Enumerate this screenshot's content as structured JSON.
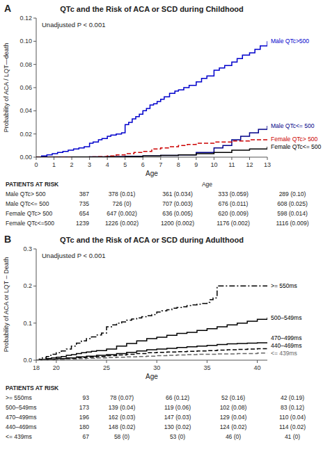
{
  "chart_data": [
    {
      "type": "step",
      "panel_label": "A",
      "title": "QTc and the Risk of ACA or SCD during Childhood",
      "x_label": "Age",
      "y_label": "Probability of ACA / LQT—death",
      "annotation": "Unadjusted P < 0.001",
      "grid": false,
      "xlim": [
        0,
        13
      ],
      "ylim": [
        0,
        0.12
      ],
      "xticks": [
        0,
        1,
        2,
        3,
        4,
        5,
        6,
        7,
        8,
        9,
        10,
        11,
        12,
        13
      ],
      "yticks": [
        {
          "value": 0,
          "label": "0.00"
        },
        0.02,
        0.04,
        0.06,
        0.08,
        {
          "value": 0.1,
          "label": "0.10"
        },
        0.12
      ],
      "series": [
        {
          "name": "Male QTc>500",
          "color": "#0000cc",
          "line_style": "solid",
          "x": [
            0,
            0.3,
            0.6,
            0.9,
            1.2,
            1.5,
            1.8,
            2.1,
            2.4,
            2.7,
            3.0,
            3.2,
            3.5,
            3.7,
            4.0,
            4.2,
            4.5,
            4.8,
            5.0,
            5.2,
            5.4,
            5.6,
            5.8,
            6.0,
            6.2,
            6.4,
            6.6,
            6.8,
            7.0,
            7.2,
            7.5,
            7.8,
            8.0,
            8.3,
            8.6,
            9.0,
            9.3,
            9.6,
            10.0,
            10.3,
            10.6,
            11.0,
            11.3,
            11.6,
            12.0,
            12.3,
            12.6,
            13.0
          ],
          "values": [
            0,
            0.001,
            0.002,
            0.003,
            0.004,
            0.005,
            0.006,
            0.007,
            0.008,
            0.009,
            0.012,
            0.013,
            0.015,
            0.016,
            0.018,
            0.019,
            0.02,
            0.021,
            0.028,
            0.03,
            0.033,
            0.035,
            0.037,
            0.04,
            0.042,
            0.045,
            0.046,
            0.048,
            0.05,
            0.052,
            0.055,
            0.057,
            0.058,
            0.06,
            0.062,
            0.065,
            0.068,
            0.07,
            0.075,
            0.077,
            0.079,
            0.082,
            0.085,
            0.088,
            0.09,
            0.093,
            0.096,
            0.1
          ]
        },
        {
          "name": "Male QTc<= 500",
          "color": "#000088",
          "line_style": "solid",
          "x": [
            0,
            1,
            2,
            3,
            4,
            5,
            6,
            7,
            8,
            9,
            10,
            10.5,
            11,
            11.5,
            12,
            12.5,
            13
          ],
          "values": [
            0,
            0.0001,
            0.0002,
            0.0003,
            0.0005,
            0.0008,
            0.001,
            0.0015,
            0.002,
            0.004,
            0.008,
            0.01,
            0.015,
            0.018,
            0.021,
            0.024,
            0.027
          ]
        },
        {
          "name": "Female QTc> 500",
          "color": "#cc0000",
          "line_style": "dashed",
          "x": [
            0,
            1,
            2,
            3,
            3.5,
            4,
            4.5,
            5,
            5.5,
            6,
            6.5,
            7,
            7.5,
            8,
            8.5,
            9,
            9.5,
            10,
            10.5,
            11,
            11.5,
            12,
            12.5,
            13
          ],
          "values": [
            0,
            0.0001,
            0.0002,
            0.0003,
            0.0005,
            0.001,
            0.002,
            0.003,
            0.004,
            0.005,
            0.007,
            0.008,
            0.009,
            0.01,
            0.011,
            0.012,
            0.012,
            0.013,
            0.013,
            0.014,
            0.014,
            0.015,
            0.015,
            0.015
          ]
        },
        {
          "name": "Female QTc<= 500",
          "color": "#000000",
          "line_style": "solid",
          "x": [
            0,
            1,
            2,
            3,
            4,
            5,
            6,
            7,
            8,
            9,
            10,
            11,
            12,
            13
          ],
          "values": [
            0,
            5e-05,
            0.0001,
            0.0002,
            0.0003,
            0.0005,
            0.001,
            0.0015,
            0.002,
            0.003,
            0.004,
            0.006,
            0.007,
            0.009
          ]
        }
      ],
      "risk_table": {
        "title": "PATIENTS AT RISK",
        "column_title": "Age",
        "rows": [
          {
            "label": "Male QTc> 500",
            "n": 387,
            "values": [
              "378 (0.01)",
              "361 (0.034)",
              "333 (0.059)",
              "289 (0.10)"
            ]
          },
          {
            "label": "Male QTc<= 500",
            "n": 735,
            "values": [
              "726 (0)",
              "707 (0.003)",
              "676 (0.011)",
              "608 (0.025)"
            ]
          },
          {
            "label": "Female QTc> 500",
            "n": 654,
            "values": [
              "647 (0.002)",
              "636 (0.005)",
              "620 (0.009)",
              "598 (0.014)"
            ]
          },
          {
            "label": "Female QTc<=500",
            "n": 1239,
            "values": [
              "1226 (0.002)",
              "1200 (0.002)",
              "1176 (0.002)",
              "1116 (0.009)"
            ]
          }
        ]
      }
    },
    {
      "type": "step",
      "panel_label": "B",
      "title": "QTc and the Risk of ACA or SCD during Adulthood",
      "x_label": "Age",
      "y_label": "Probability of ACA or LQT – Death",
      "annotation": "Unadjusted P < 0.001",
      "grid": false,
      "xlim": [
        18,
        41
      ],
      "ylim": [
        0,
        0.3
      ],
      "xticks": [
        18,
        20,
        25,
        30,
        35,
        40
      ],
      "yticks": [
        {
          "value": 0,
          "label": "0.0"
        },
        0.1,
        0.2,
        0.3
      ],
      "series": [
        {
          "name": ">= 550ms",
          "color": "#000000",
          "line_style": "dashdot",
          "x": [
            18,
            18.3,
            18.6,
            19,
            19.3,
            19.6,
            20,
            20.5,
            21,
            21.5,
            22,
            22.5,
            23,
            23.5,
            24,
            24.5,
            25,
            25.5,
            26,
            26.5,
            27,
            27.5,
            28,
            28.5,
            29,
            29.5,
            30,
            30.5,
            31,
            31.5,
            32,
            32.5,
            33,
            33.5,
            34,
            34.5,
            35,
            35.3,
            35.6,
            36,
            37,
            38,
            39,
            40,
            41
          ],
          "values": [
            0,
            0.003,
            0.006,
            0.01,
            0.013,
            0.016,
            0.02,
            0.025,
            0.03,
            0.038,
            0.046,
            0.052,
            0.058,
            0.063,
            0.068,
            0.073,
            0.09,
            0.095,
            0.1,
            0.103,
            0.108,
            0.111,
            0.114,
            0.117,
            0.12,
            0.123,
            0.13,
            0.133,
            0.136,
            0.14,
            0.142,
            0.144,
            0.147,
            0.149,
            0.151,
            0.153,
            0.156,
            0.163,
            0.168,
            0.2,
            0.2,
            0.2,
            0.2,
            0.2,
            0.2
          ]
        },
        {
          "name": "500–549ms",
          "color": "#000000",
          "line_style": "solid",
          "x": [
            18,
            18.5,
            19,
            19.5,
            20,
            20.5,
            21,
            21.5,
            22,
            22.5,
            23,
            23.5,
            24,
            25,
            26,
            27,
            28,
            29,
            30,
            31,
            32,
            33,
            34,
            35,
            36,
            37,
            38,
            39,
            40,
            41
          ],
          "values": [
            0,
            0.002,
            0.004,
            0.006,
            0.008,
            0.01,
            0.013,
            0.015,
            0.018,
            0.02,
            0.022,
            0.024,
            0.026,
            0.03,
            0.038,
            0.045,
            0.052,
            0.058,
            0.062,
            0.067,
            0.072,
            0.075,
            0.08,
            0.085,
            0.09,
            0.095,
            0.1,
            0.105,
            0.11,
            0.115
          ]
        },
        {
          "name": "470–499ms",
          "color": "#000000",
          "line_style": "solid",
          "x": [
            18,
            19,
            20,
            21,
            22,
            23,
            24,
            25,
            26,
            27,
            28,
            29,
            30,
            31,
            32,
            33,
            34,
            35,
            36,
            37,
            38,
            39,
            40,
            41
          ],
          "values": [
            0,
            0.002,
            0.004,
            0.006,
            0.009,
            0.011,
            0.013,
            0.015,
            0.018,
            0.021,
            0.025,
            0.028,
            0.03,
            0.032,
            0.034,
            0.036,
            0.038,
            0.04,
            0.042,
            0.044,
            0.045,
            0.046,
            0.047,
            0.048
          ]
        },
        {
          "name": "440–469ms",
          "color": "#000000",
          "line_style": "dashed",
          "x": [
            18,
            19,
            20,
            21,
            22,
            23,
            24,
            25,
            26,
            27,
            28,
            29,
            30,
            31,
            32,
            33,
            34,
            35,
            36,
            37,
            38,
            39,
            40,
            41
          ],
          "values": [
            0,
            0.002,
            0.003,
            0.005,
            0.007,
            0.008,
            0.01,
            0.012,
            0.014,
            0.016,
            0.018,
            0.02,
            0.021,
            0.022,
            0.023,
            0.024,
            0.025,
            0.026,
            0.027,
            0.028,
            0.029,
            0.03,
            0.031,
            0.032
          ]
        },
        {
          "name": "<= 439ms",
          "color": "#666666",
          "line_style": "dashed",
          "x": [
            18,
            19,
            20,
            21,
            22,
            23,
            24,
            25,
            26,
            27,
            28,
            29,
            30,
            31,
            32,
            33,
            34,
            35,
            36,
            37,
            38,
            39,
            40,
            41
          ],
          "values": [
            0,
            0.001,
            0.002,
            0.003,
            0.004,
            0.005,
            0.006,
            0.007,
            0.008,
            0.009,
            0.01,
            0.011,
            0.012,
            0.013,
            0.014,
            0.015,
            0.016,
            0.016,
            0.017,
            0.017,
            0.018,
            0.018,
            0.019,
            0.019
          ]
        }
      ],
      "risk_table": {
        "title": "PATIENTS AT RISK",
        "rows": [
          {
            "label": ">= 550ms",
            "n": 93,
            "values": [
              "78 (0.07)",
              "66 (0.12)",
              "52 (0.16)",
              "42 (0.19)"
            ]
          },
          {
            "label": "500–549ms",
            "n": 173,
            "values": [
              "139 (0.04)",
              "119 (0.06)",
              "102 (0.08)",
              "83 (0.12)"
            ]
          },
          {
            "label": "470–499ms",
            "n": 196,
            "values": [
              "162 (0.03)",
              "147 (0.03)",
              "129 (0.04)",
              "110 (0.04)"
            ]
          },
          {
            "label": "440–469ms",
            "n": 180,
            "values": [
              "148 (0.02)",
              "130 (0.02)",
              "124 (0.02)",
              "114 (0.02)"
            ]
          },
          {
            "label": "<= 439ms",
            "n": 67,
            "values": [
              "58 (0)",
              "53 (0)",
              "46 (0)",
              "41 (0)"
            ]
          }
        ]
      }
    }
  ]
}
